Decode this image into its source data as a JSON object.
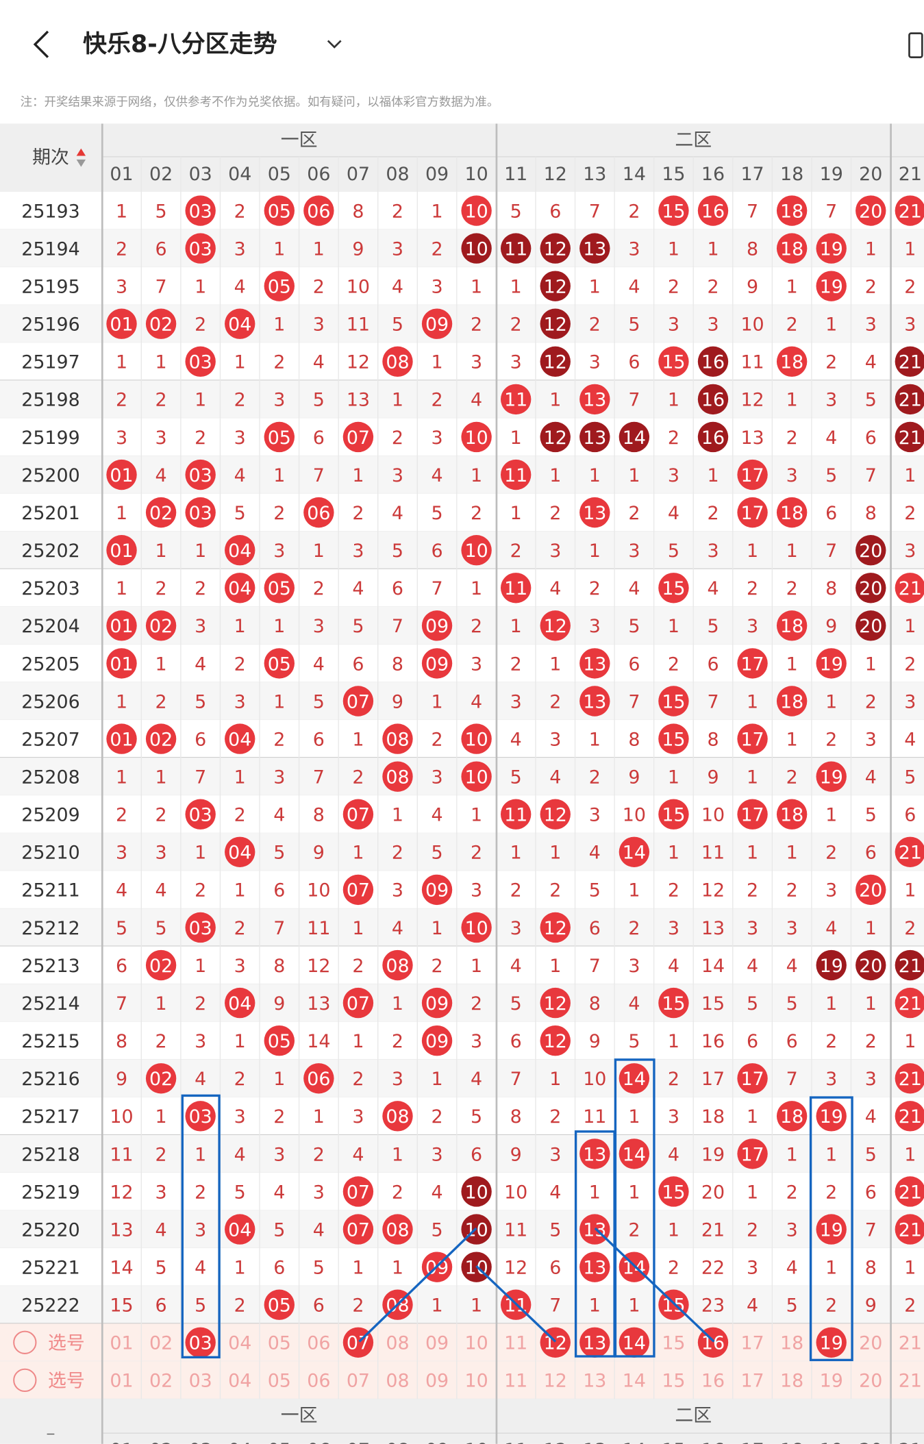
{
  "header": {
    "title": "快乐8-八分区走势",
    "note": "注：开奖结果来源于网络，仅供参考不作为兑奖依据。如有疑问，以福体彩官方数据为准。"
  },
  "table": {
    "issue_label": "期次",
    "zones": [
      "一区",
      "二区"
    ],
    "numbers": [
      "01",
      "02",
      "03",
      "04",
      "05",
      "06",
      "07",
      "08",
      "09",
      "10",
      "11",
      "12",
      "13",
      "14",
      "15",
      "16",
      "17",
      "18",
      "19",
      "20",
      "21"
    ],
    "rows": [
      {
        "issue": "25193",
        "cells": [
          "1",
          "5",
          "03",
          "2",
          "05",
          "06",
          "8",
          "2",
          "1",
          "10",
          "5",
          "6",
          "7",
          "2",
          "15",
          "16",
          "7",
          "18",
          "7",
          "20",
          "21"
        ],
        "style": "--r-rr---r----rr-r-rr"
      },
      {
        "issue": "25194",
        "cells": [
          "2",
          "6",
          "03",
          "3",
          "1",
          "1",
          "9",
          "3",
          "2",
          "10",
          "11",
          "12",
          "13",
          "3",
          "1",
          "1",
          "8",
          "18",
          "19",
          "1",
          "1"
        ],
        "style": "--r------dddd----rr--"
      },
      {
        "issue": "25195",
        "cells": [
          "3",
          "7",
          "1",
          "4",
          "05",
          "2",
          "10",
          "4",
          "3",
          "1",
          "1",
          "12",
          "1",
          "4",
          "2",
          "2",
          "9",
          "1",
          "19",
          "2",
          "2"
        ],
        "style": "----r------d------r--"
      },
      {
        "issue": "25196",
        "cells": [
          "01",
          "02",
          "2",
          "04",
          "1",
          "3",
          "11",
          "5",
          "09",
          "2",
          "2",
          "12",
          "2",
          "5",
          "3",
          "3",
          "10",
          "2",
          "1",
          "3",
          "3"
        ],
        "style": "rr-r----r--d---------"
      },
      {
        "issue": "25197",
        "cells": [
          "1",
          "1",
          "03",
          "1",
          "2",
          "4",
          "12",
          "08",
          "1",
          "3",
          "3",
          "12",
          "3",
          "6",
          "15",
          "16",
          "11",
          "18",
          "2",
          "4",
          "21"
        ],
        "style": "--r----r---d--rd-r--d"
      },
      {
        "issue": "25198",
        "cells": [
          "2",
          "2",
          "1",
          "2",
          "3",
          "5",
          "13",
          "1",
          "2",
          "4",
          "11",
          "1",
          "13",
          "7",
          "1",
          "16",
          "12",
          "1",
          "3",
          "5",
          "21"
        ],
        "style": "----------r-r--d----d"
      },
      {
        "issue": "25199",
        "cells": [
          "3",
          "3",
          "2",
          "3",
          "05",
          "6",
          "07",
          "2",
          "3",
          "10",
          "1",
          "12",
          "13",
          "14",
          "2",
          "16",
          "13",
          "2",
          "4",
          "6",
          "21"
        ],
        "style": "----r-r--r-ddd-d----d"
      },
      {
        "issue": "25200",
        "cells": [
          "01",
          "4",
          "03",
          "4",
          "1",
          "7",
          "1",
          "3",
          "4",
          "1",
          "11",
          "1",
          "1",
          "1",
          "3",
          "1",
          "17",
          "3",
          "5",
          "7",
          "1"
        ],
        "style": "r-r-------r-----r----"
      },
      {
        "issue": "25201",
        "cells": [
          "1",
          "02",
          "03",
          "5",
          "2",
          "06",
          "2",
          "4",
          "5",
          "2",
          "1",
          "2",
          "13",
          "2",
          "4",
          "2",
          "17",
          "18",
          "6",
          "8",
          "2"
        ],
        "style": "-rr--r------r---rr---"
      },
      {
        "issue": "25202",
        "cells": [
          "01",
          "1",
          "1",
          "04",
          "3",
          "1",
          "3",
          "5",
          "6",
          "10",
          "2",
          "3",
          "1",
          "3",
          "5",
          "3",
          "1",
          "1",
          "7",
          "20",
          "3"
        ],
        "style": "r--r-----r---------d-"
      },
      {
        "issue": "25203",
        "cells": [
          "1",
          "2",
          "2",
          "04",
          "05",
          "2",
          "4",
          "6",
          "7",
          "1",
          "11",
          "4",
          "2",
          "4",
          "15",
          "4",
          "2",
          "2",
          "8",
          "20",
          "21"
        ],
        "style": "---rr-----r---r----dr"
      },
      {
        "issue": "25204",
        "cells": [
          "01",
          "02",
          "3",
          "1",
          "1",
          "3",
          "5",
          "7",
          "09",
          "2",
          "1",
          "12",
          "3",
          "5",
          "1",
          "5",
          "3",
          "18",
          "9",
          "20",
          "1"
        ],
        "style": "rr------r--r-----r-d-"
      },
      {
        "issue": "25205",
        "cells": [
          "01",
          "1",
          "4",
          "2",
          "05",
          "4",
          "6",
          "8",
          "09",
          "3",
          "2",
          "1",
          "13",
          "6",
          "2",
          "6",
          "17",
          "1",
          "19",
          "1",
          "2"
        ],
        "style": "r---r---r---r---r-r--"
      },
      {
        "issue": "25206",
        "cells": [
          "1",
          "2",
          "5",
          "3",
          "1",
          "5",
          "07",
          "9",
          "1",
          "4",
          "3",
          "2",
          "13",
          "7",
          "15",
          "7",
          "1",
          "18",
          "1",
          "2",
          "3"
        ],
        "style": "------r-----r-r--r---"
      },
      {
        "issue": "25207",
        "cells": [
          "01",
          "02",
          "6",
          "04",
          "2",
          "6",
          "1",
          "08",
          "2",
          "10",
          "4",
          "3",
          "1",
          "8",
          "15",
          "8",
          "17",
          "1",
          "2",
          "3",
          "4"
        ],
        "style": "rr-r---r-r----r-r----"
      },
      {
        "issue": "25208",
        "cells": [
          "1",
          "1",
          "7",
          "1",
          "3",
          "7",
          "2",
          "08",
          "3",
          "10",
          "5",
          "4",
          "2",
          "9",
          "1",
          "9",
          "1",
          "2",
          "19",
          "4",
          "5"
        ],
        "style": "-------r-r--------r--"
      },
      {
        "issue": "25209",
        "cells": [
          "2",
          "2",
          "03",
          "2",
          "4",
          "8",
          "07",
          "1",
          "4",
          "1",
          "11",
          "12",
          "3",
          "10",
          "15",
          "10",
          "17",
          "18",
          "1",
          "5",
          "6"
        ],
        "style": "--r---r---rr--r-rr---"
      },
      {
        "issue": "25210",
        "cells": [
          "3",
          "3",
          "1",
          "04",
          "5",
          "9",
          "1",
          "2",
          "5",
          "2",
          "1",
          "1",
          "4",
          "14",
          "1",
          "11",
          "1",
          "1",
          "2",
          "6",
          "21"
        ],
        "style": "---r---------r------r"
      },
      {
        "issue": "25211",
        "cells": [
          "4",
          "4",
          "2",
          "1",
          "6",
          "10",
          "07",
          "3",
          "09",
          "3",
          "2",
          "2",
          "5",
          "1",
          "2",
          "12",
          "2",
          "2",
          "3",
          "20",
          "1"
        ],
        "style": "------r-r----------r-"
      },
      {
        "issue": "25212",
        "cells": [
          "5",
          "5",
          "03",
          "2",
          "7",
          "11",
          "1",
          "4",
          "1",
          "10",
          "3",
          "12",
          "6",
          "2",
          "3",
          "13",
          "3",
          "3",
          "4",
          "1",
          "2"
        ],
        "style": "--r------r-r---------"
      },
      {
        "issue": "25213",
        "cells": [
          "6",
          "02",
          "1",
          "3",
          "8",
          "12",
          "2",
          "08",
          "2",
          "1",
          "4",
          "1",
          "7",
          "3",
          "4",
          "14",
          "4",
          "4",
          "19",
          "20",
          "21"
        ],
        "style": "-r-----r----------ddd"
      },
      {
        "issue": "25214",
        "cells": [
          "7",
          "1",
          "2",
          "04",
          "9",
          "13",
          "07",
          "1",
          "09",
          "2",
          "5",
          "12",
          "8",
          "4",
          "15",
          "15",
          "5",
          "5",
          "1",
          "1",
          "21"
        ],
        "style": "---r--r-r--r--r-----r"
      },
      {
        "issue": "25215",
        "cells": [
          "8",
          "2",
          "3",
          "1",
          "05",
          "14",
          "1",
          "2",
          "09",
          "3",
          "6",
          "12",
          "9",
          "5",
          "1",
          "16",
          "6",
          "6",
          "2",
          "2",
          "1"
        ],
        "style": "----r---r--r---------"
      },
      {
        "issue": "25216",
        "cells": [
          "9",
          "02",
          "4",
          "2",
          "1",
          "06",
          "2",
          "3",
          "1",
          "4",
          "7",
          "1",
          "10",
          "14",
          "2",
          "17",
          "17",
          "7",
          "3",
          "3",
          "21"
        ],
        "style": "-r---r-------r--r---r"
      },
      {
        "issue": "25217",
        "cells": [
          "10",
          "1",
          "03",
          "3",
          "2",
          "1",
          "3",
          "08",
          "2",
          "5",
          "8",
          "2",
          "11",
          "1",
          "3",
          "18",
          "1",
          "18",
          "19",
          "4",
          "21"
        ],
        "style": "--r----r---------rr-r"
      },
      {
        "issue": "25218",
        "cells": [
          "11",
          "2",
          "1",
          "4",
          "3",
          "2",
          "4",
          "1",
          "3",
          "6",
          "9",
          "3",
          "13",
          "14",
          "4",
          "19",
          "17",
          "1",
          "1",
          "5",
          "1"
        ],
        "style": "------------rr--r----"
      },
      {
        "issue": "25219",
        "cells": [
          "12",
          "3",
          "2",
          "5",
          "4",
          "3",
          "07",
          "2",
          "4",
          "10",
          "10",
          "4",
          "1",
          "1",
          "15",
          "20",
          "1",
          "2",
          "2",
          "6",
          "21"
        ],
        "style": "------r--d----r-----r"
      },
      {
        "issue": "25220",
        "cells": [
          "13",
          "4",
          "3",
          "04",
          "5",
          "4",
          "07",
          "08",
          "5",
          "10",
          "11",
          "5",
          "13",
          "2",
          "1",
          "21",
          "2",
          "3",
          "19",
          "7",
          "21"
        ],
        "style": "---r--rr-d--r-----r-r"
      },
      {
        "issue": "25221",
        "cells": [
          "14",
          "5",
          "4",
          "1",
          "6",
          "5",
          "1",
          "1",
          "09",
          "10",
          "12",
          "6",
          "13",
          "14",
          "2",
          "22",
          "3",
          "4",
          "1",
          "8",
          "1"
        ],
        "style": "--------rd--rr-------"
      },
      {
        "issue": "25222",
        "cells": [
          "15",
          "6",
          "5",
          "2",
          "05",
          "6",
          "2",
          "08",
          "1",
          "1",
          "11",
          "7",
          "1",
          "1",
          "15",
          "23",
          "4",
          "5",
          "2",
          "9",
          "2"
        ],
        "style": "----r--r--r---r------"
      }
    ],
    "selection_label": "选号",
    "selections": [
      {
        "style": "--r---r----rrr-r--r--"
      },
      {
        "style": "---------------------"
      }
    ]
  }
}
